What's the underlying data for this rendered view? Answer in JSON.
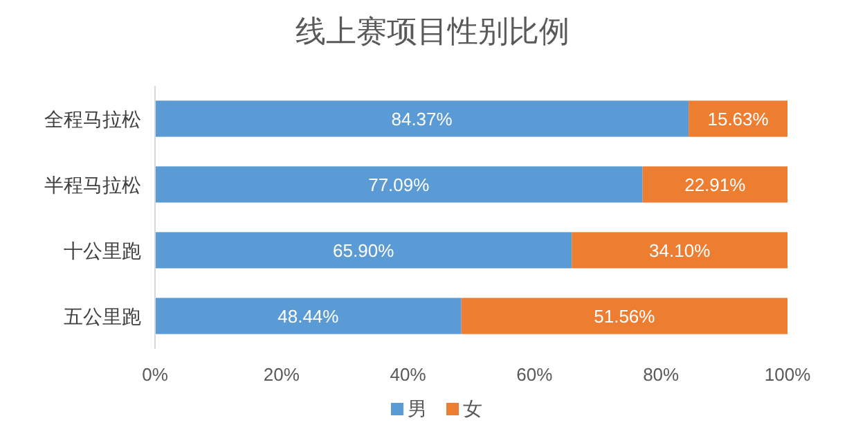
{
  "chart_data": {
    "type": "bar",
    "title": "线上赛项目性别比例",
    "orientation": "horizontal",
    "stacked": true,
    "categories": [
      "全程马拉松",
      "半程马拉松",
      "十公里跑",
      "五公里跑"
    ],
    "series": [
      {
        "name": "男",
        "color": "#5b9bd5",
        "values": [
          84.37,
          77.09,
          65.9,
          48.44
        ],
        "value_labels": [
          "84.37%",
          "77.09%",
          "65.90%",
          "48.44%"
        ]
      },
      {
        "name": "女",
        "color": "#ed7d31",
        "values": [
          15.63,
          22.91,
          34.1,
          51.56
        ],
        "value_labels": [
          "15.63%",
          "22.91%",
          "34.10%",
          "51.56%"
        ]
      }
    ],
    "xlim": [
      0,
      100
    ],
    "xticks": [
      {
        "value": 0,
        "label": "0%"
      },
      {
        "value": 20,
        "label": "20%"
      },
      {
        "value": 40,
        "label": "40%"
      },
      {
        "value": 60,
        "label": "60%"
      },
      {
        "value": 80,
        "label": "80%"
      },
      {
        "value": 100,
        "label": "100%"
      }
    ],
    "legend": "bottom"
  }
}
